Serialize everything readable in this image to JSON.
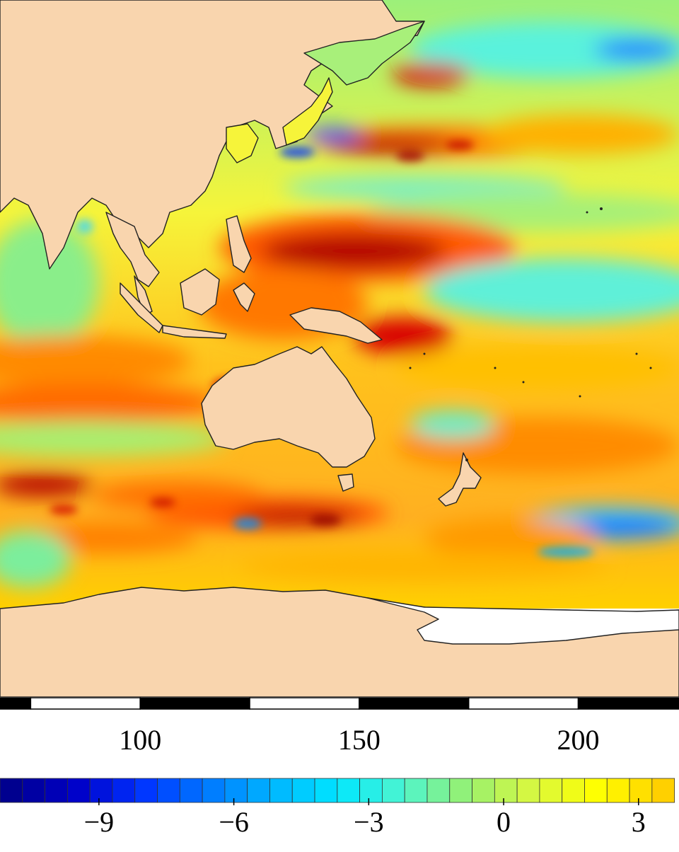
{
  "map": {
    "land_color": "#f9d5ae",
    "ice_color": "#ffffff",
    "coast_color": "#222222",
    "ocean_palette": [
      "#00008f",
      "#0050ff",
      "#00c8ff",
      "#4cf5d0",
      "#98f070",
      "#ffff00",
      "#ffb400",
      "#ff6400",
      "#c80000"
    ],
    "regions": [
      "Indian Ocean",
      "Western Pacific",
      "Southern Ocean",
      "Australia",
      "New Zealand",
      "Antarctica"
    ]
  },
  "longitude_axis": {
    "tick_labels": [
      "100",
      "150",
      "200"
    ],
    "tick_values": [
      100,
      150,
      200
    ],
    "visible_range": [
      68,
      223
    ]
  },
  "colorbar": {
    "tick_labels": [
      "−9",
      "−6",
      "−3",
      "0",
      "3"
    ],
    "tick_values": [
      -9,
      -6,
      -3,
      0,
      3
    ],
    "visible_range": [
      -11.2,
      3.9
    ],
    "step": 0.5,
    "colors": [
      "#00008f",
      "#0000c8",
      "#0032ff",
      "#0078ff",
      "#00b4ff",
      "#00e6ff",
      "#4cf5d0",
      "#98f070",
      "#d8f840",
      "#ffff00",
      "#ffd000"
    ]
  }
}
